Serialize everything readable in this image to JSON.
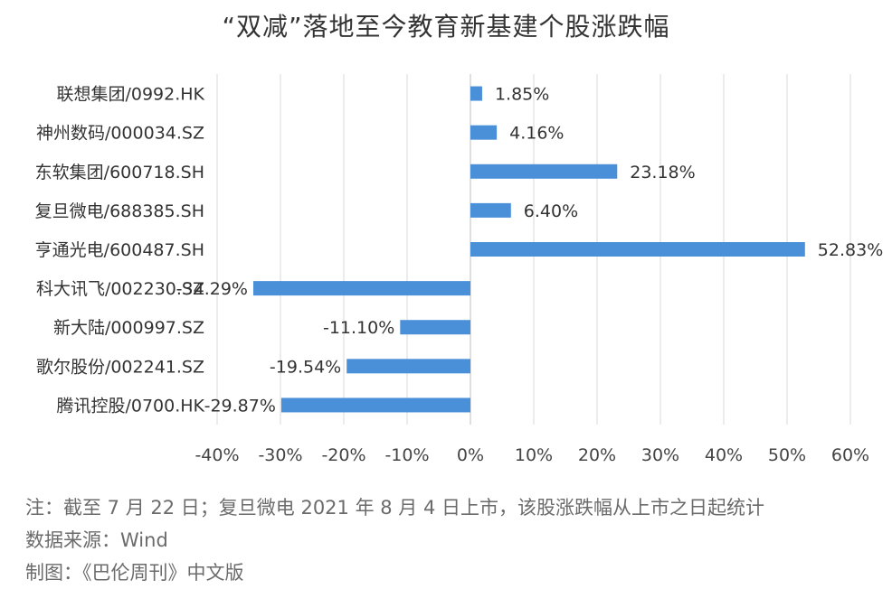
{
  "chart_data": {
    "type": "bar",
    "orientation": "horizontal",
    "title": "“双减”落地至今教育新基建个股涨跌幅",
    "categories": [
      "联想集团/0992.HK",
      "神州数码/000034.SZ",
      "东软集团/600718.SH",
      "复旦微电/688385.SH",
      "亨通光电/600487.SH",
      "科大讯飞/002230.SZ",
      "新大陆/000997.SZ",
      "歌尔股份/002241.SZ",
      "腾讯控股/0700.HK"
    ],
    "values": [
      1.85,
      4.16,
      23.18,
      6.4,
      52.83,
      -34.29,
      -11.1,
      -19.54,
      -29.87
    ],
    "value_labels": [
      "1.85%",
      "4.16%",
      "23.18%",
      "6.40%",
      "52.83%",
      "-34.29%",
      "-11.10%",
      "-19.54%",
      "-29.87%"
    ],
    "xlim": [
      -40,
      60
    ],
    "xticks": [
      -40,
      -30,
      -20,
      -10,
      0,
      10,
      20,
      30,
      40,
      50,
      60
    ],
    "xtick_labels": [
      "-40%",
      "-30%",
      "-20%",
      "-10%",
      "0%",
      "10%",
      "20%",
      "30%",
      "40%",
      "50%",
      "60%"
    ],
    "grid": true,
    "bar_color": "#4a90d9",
    "legend": "none"
  },
  "notes": {
    "note": "注：截至 7 月 22 日；复旦微电 2021 年 8 月 4 日上市，该股涨跌幅从上市之日起统计",
    "source": "数据来源：Wind",
    "credit": "制图：《巴伦周刊》中文版"
  }
}
